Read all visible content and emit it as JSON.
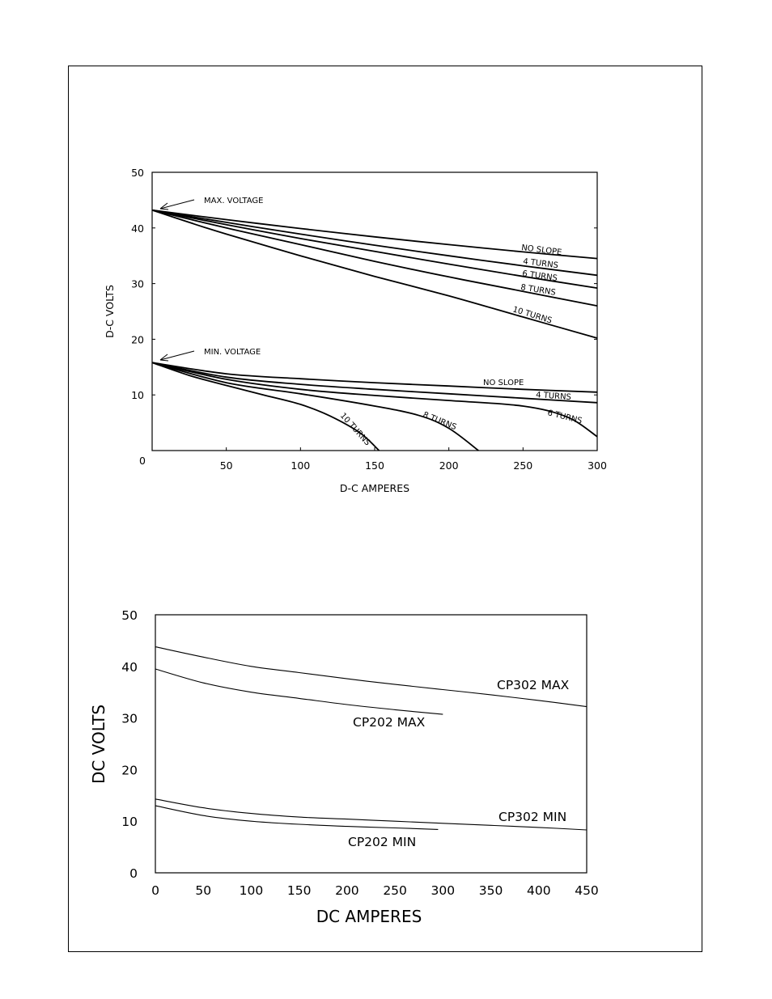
{
  "chart_data": [
    {
      "type": "line",
      "xlabel": "D-C AMPERES",
      "ylabel": "D-C VOLTS",
      "xlim": [
        0,
        300
      ],
      "ylim": [
        0,
        50
      ],
      "x_ticks": [
        50,
        100,
        150,
        200,
        250,
        300
      ],
      "y_ticks": [
        10,
        20,
        30,
        40,
        50
      ],
      "origin_label": "0",
      "annotations": [
        "MAX. VOLTAGE",
        "MIN. VOLTAGE"
      ],
      "series": [
        {
          "name": "NO SLOPE",
          "group": "max",
          "x": [
            0,
            50,
            100,
            150,
            200,
            250,
            300
          ],
          "y": [
            43.2,
            41.5,
            39.9,
            38.4,
            37.0,
            35.7,
            34.5
          ]
        },
        {
          "name": "4 TURNS",
          "group": "max",
          "x": [
            0,
            50,
            100,
            150,
            200,
            250,
            300
          ],
          "y": [
            43.2,
            41.0,
            38.9,
            36.9,
            35.0,
            33.2,
            31.5
          ]
        },
        {
          "name": "6 TURNS",
          "group": "max",
          "x": [
            0,
            50,
            100,
            150,
            200,
            250,
            300
          ],
          "y": [
            43.2,
            40.6,
            38.1,
            35.8,
            33.5,
            31.3,
            29.2
          ]
        },
        {
          "name": "8 TURNS",
          "group": "max",
          "x": [
            0,
            50,
            100,
            150,
            200,
            250,
            300
          ],
          "y": [
            43.2,
            40.0,
            37.0,
            34.0,
            31.2,
            28.6,
            26.0
          ]
        },
        {
          "name": "10 TURNS",
          "group": "max",
          "x": [
            0,
            25,
            50,
            100,
            150,
            200,
            250,
            300
          ],
          "y": [
            43.2,
            41.0,
            38.9,
            35.0,
            31.3,
            27.8,
            24.0,
            20.2
          ]
        },
        {
          "name": "NO SLOPE",
          "group": "min",
          "x": [
            0,
            50,
            100,
            150,
            200,
            250,
            300
          ],
          "y": [
            15.8,
            13.8,
            12.9,
            12.2,
            11.6,
            11.0,
            10.5
          ]
        },
        {
          "name": "4 TURNS",
          "group": "min",
          "x": [
            0,
            50,
            100,
            150,
            200,
            250,
            300
          ],
          "y": [
            15.8,
            13.2,
            11.9,
            11.0,
            10.2,
            9.4,
            8.6
          ]
        },
        {
          "name": "6 TURNS",
          "group": "min",
          "x": [
            0,
            50,
            100,
            150,
            200,
            250,
            280,
            300
          ],
          "y": [
            15.8,
            12.8,
            11.0,
            9.9,
            9.0,
            8.0,
            6.0,
            2.5
          ]
        },
        {
          "name": "8 TURNS",
          "group": "min",
          "x": [
            0,
            50,
            100,
            150,
            180,
            200,
            220
          ],
          "y": [
            15.8,
            12.2,
            10.2,
            8.0,
            6.3,
            4.0,
            0
          ]
        },
        {
          "name": "10 TURNS",
          "group": "min",
          "x": [
            0,
            25,
            50,
            75,
            100,
            120,
            140,
            153
          ],
          "y": [
            15.8,
            13.5,
            11.7,
            10.0,
            8.3,
            6.2,
            3.2,
            0
          ]
        }
      ]
    },
    {
      "type": "line",
      "xlabel": "DC AMPERES",
      "ylabel": "DC VOLTS",
      "xlim": [
        0,
        450
      ],
      "ylim": [
        0,
        50
      ],
      "x_ticks": [
        0,
        50,
        100,
        150,
        200,
        250,
        300,
        350,
        400,
        450
      ],
      "y_ticks": [
        0,
        10,
        20,
        30,
        40,
        50
      ],
      "series": [
        {
          "name": "CP302 MAX",
          "x": [
            0,
            50,
            100,
            150,
            200,
            250,
            300,
            350,
            400,
            450
          ],
          "y": [
            43.8,
            41.8,
            40.0,
            38.8,
            37.6,
            36.5,
            35.5,
            34.5,
            33.4,
            32.2
          ]
        },
        {
          "name": "CP202 MAX",
          "x": [
            0,
            50,
            100,
            150,
            200,
            250,
            300
          ],
          "y": [
            39.5,
            36.8,
            35.0,
            33.8,
            32.6,
            31.6,
            30.7
          ]
        },
        {
          "name": "CP302 MIN",
          "x": [
            0,
            50,
            100,
            150,
            200,
            250,
            300,
            350,
            400,
            450
          ],
          "y": [
            14.3,
            12.6,
            11.5,
            10.8,
            10.4,
            10.0,
            9.6,
            9.2,
            8.8,
            8.3
          ]
        },
        {
          "name": "CP202 MIN",
          "x": [
            0,
            50,
            100,
            150,
            200,
            250,
            295
          ],
          "y": [
            13.0,
            11.1,
            10.0,
            9.4,
            9.0,
            8.7,
            8.4
          ]
        }
      ]
    }
  ]
}
